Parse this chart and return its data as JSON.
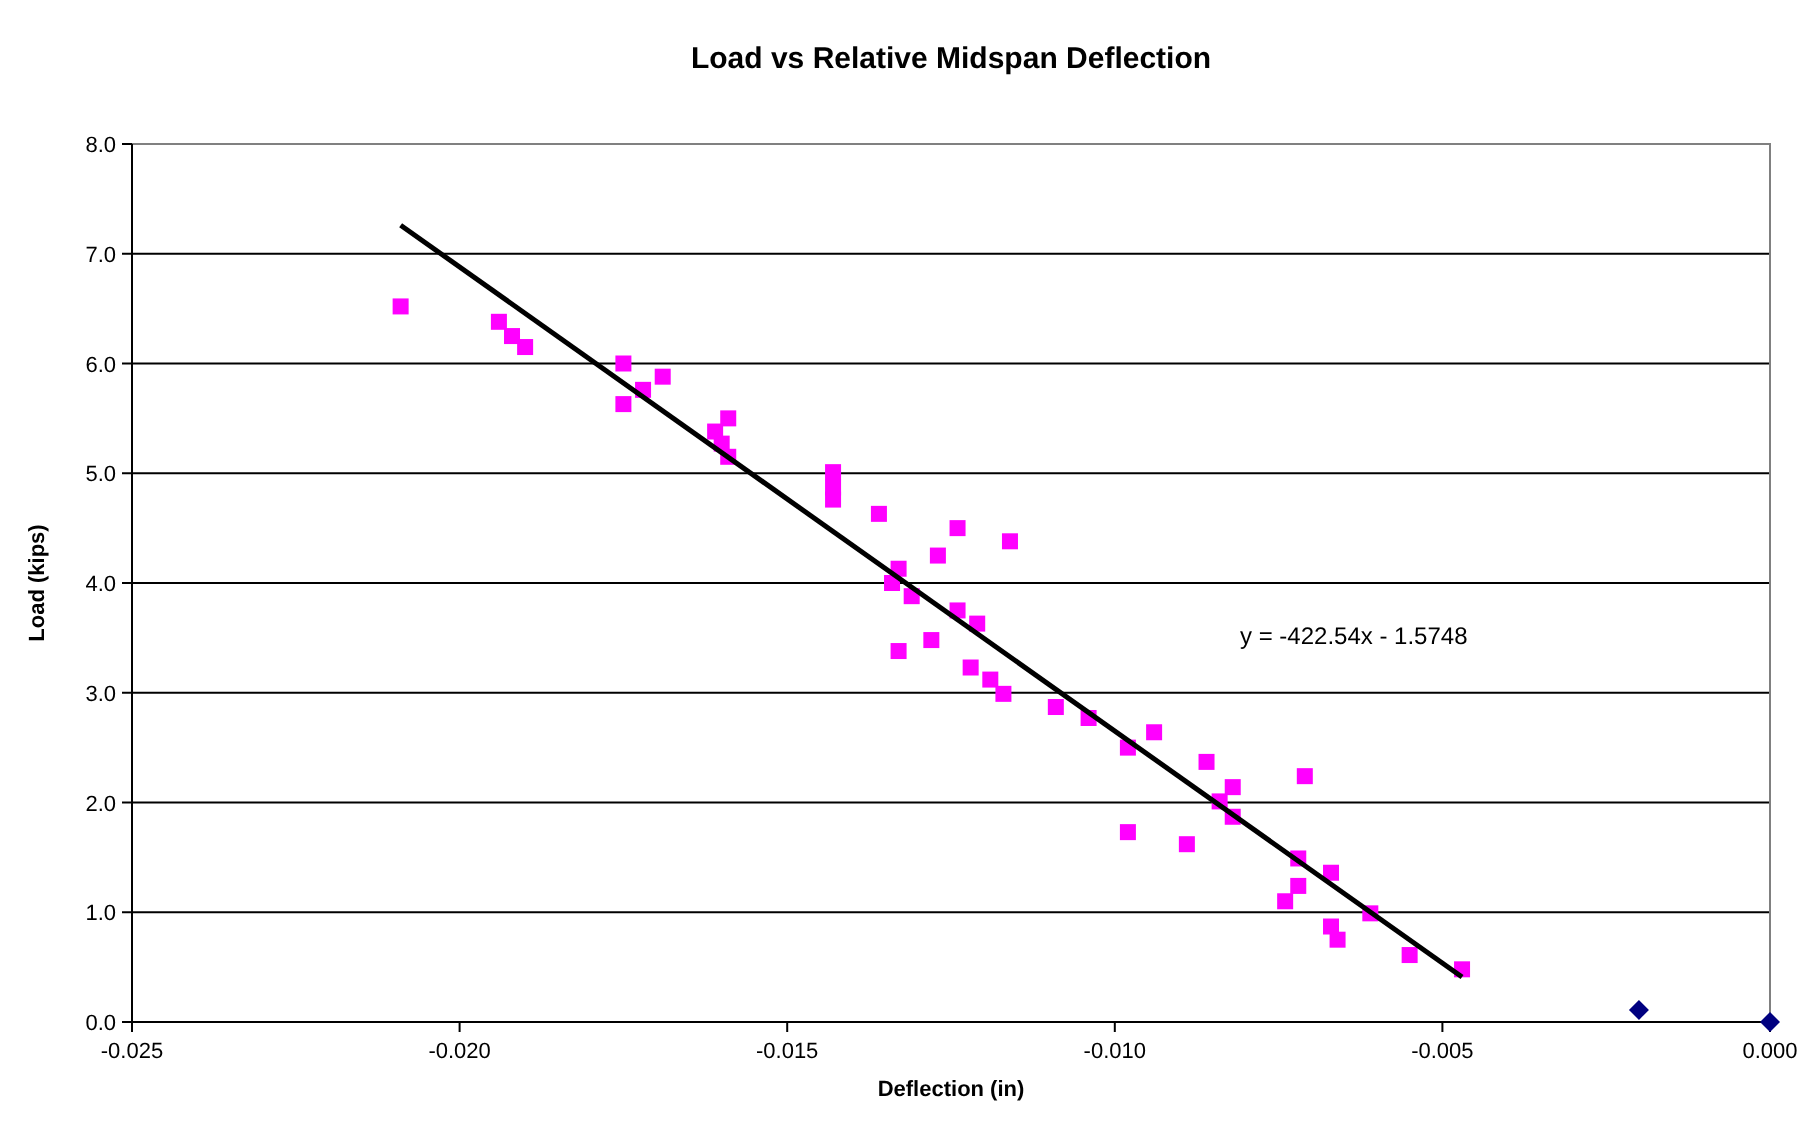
{
  "chart_data": {
    "type": "scatter",
    "title": "Load vs Relative Midspan Deflection",
    "xlabel": "Deflection (in)",
    "ylabel": "Load (kips)",
    "xlim": [
      -0.025,
      0.0
    ],
    "xticks": [
      {
        "value": -0.025,
        "label": "-0.025"
      },
      {
        "value": -0.02,
        "label": "-0.020"
      },
      {
        "value": -0.015,
        "label": "-0.015"
      },
      {
        "value": -0.01,
        "label": "-0.010"
      },
      {
        "value": -0.005,
        "label": "-0.005"
      },
      {
        "value": 0,
        "label": "0.000"
      }
    ],
    "ylim": [
      0,
      8
    ],
    "yticks": [
      {
        "value": 0,
        "label": "0.0"
      },
      {
        "value": 1,
        "label": "1.0"
      },
      {
        "value": 2,
        "label": "2.0"
      },
      {
        "value": 3,
        "label": "3.0"
      },
      {
        "value": 4,
        "label": "4.0"
      },
      {
        "value": 5,
        "label": "5.0"
      },
      {
        "value": 6,
        "label": "6.0"
      },
      {
        "value": 7,
        "label": "7.0"
      },
      {
        "value": 8,
        "label": "8.0"
      }
    ],
    "grid": "y",
    "annotations": [
      "y = -422.54x - 1.5748"
    ],
    "series": [
      {
        "color": "#ff00ff",
        "marker": "square",
        "x": [
          -0.0209,
          -0.0194,
          -0.0192,
          -0.019,
          -0.0175,
          -0.0175,
          -0.0172,
          -0.0169,
          -0.0161,
          -0.016,
          -0.0159,
          -0.0159,
          -0.0143,
          -0.0143,
          -0.0143,
          -0.0136,
          -0.0124,
          -0.0116,
          -0.0127,
          -0.0134,
          -0.0133,
          -0.0131,
          -0.0124,
          -0.0121,
          -0.0133,
          -0.0128,
          -0.0122,
          -0.0119,
          -0.0117,
          -0.0109,
          -0.0104,
          -0.0094,
          -0.0098,
          -0.0086,
          -0.0071,
          -0.0082,
          -0.0084,
          -0.0082,
          -0.0098,
          -0.0089,
          -0.0072,
          -0.0067,
          -0.0072,
          -0.0074,
          -0.0061,
          -0.0067,
          -0.0066,
          -0.0055,
          -0.0047
        ],
        "values": [
          6.52,
          6.38,
          6.25,
          6.15,
          6.0,
          5.63,
          5.76,
          5.88,
          5.38,
          5.27,
          5.5,
          5.15,
          5.01,
          4.87,
          4.76,
          4.63,
          4.5,
          4.38,
          4.25,
          4.0,
          4.13,
          3.88,
          3.75,
          3.63,
          3.38,
          3.48,
          3.23,
          3.12,
          2.99,
          2.87,
          2.77,
          2.64,
          2.5,
          2.37,
          2.24,
          2.14,
          2.01,
          1.87,
          1.73,
          1.62,
          1.49,
          1.36,
          1.24,
          1.1,
          0.99,
          0.87,
          0.75,
          0.61,
          0.48
        ]
      },
      {
        "color": "#000080",
        "marker": "diamond",
        "x": [
          -0.002,
          0.0
        ],
        "values": [
          0.11,
          0.0
        ]
      },
      {
        "type": "line",
        "color": "#000000",
        "marker": "none",
        "x": [
          -0.0209,
          -0.0047
        ],
        "values": [
          7.26,
          0.41
        ]
      }
    ]
  }
}
